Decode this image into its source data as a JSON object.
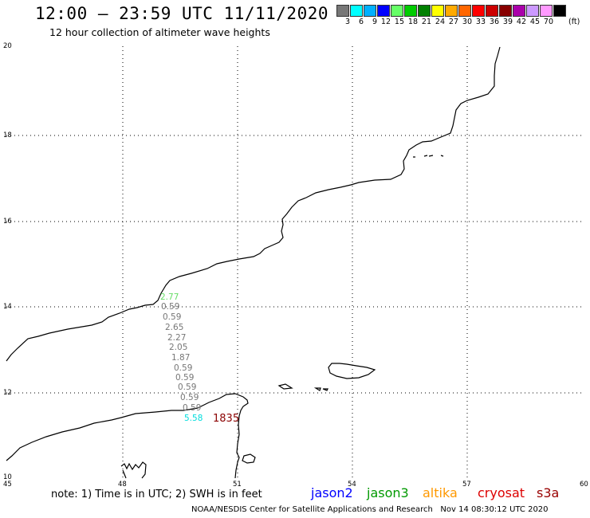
{
  "header": {
    "title": "12:00 – 23:59 UTC 11/11/2020",
    "subtitle": "12 hour collection of altimeter wave heights"
  },
  "colorbar": {
    "colors": [
      "#777777",
      "#00ffff",
      "#00b0ff",
      "#0000ff",
      "#66ff66",
      "#00cc00",
      "#008000",
      "#ffff00",
      "#ffaa00",
      "#ff6600",
      "#ff0000",
      "#cc0000",
      "#880000",
      "#aa00aa",
      "#cc99ff",
      "#ff99ff",
      "#000000"
    ],
    "labels": [
      "3",
      "6",
      "9",
      "12",
      "15",
      "18",
      "21",
      "24",
      "27",
      "30",
      "33",
      "36",
      "39",
      "42",
      "45",
      "70"
    ],
    "unit": "(ft)"
  },
  "axes": {
    "y_labels": [
      "20",
      "18",
      "16",
      "14",
      "12",
      "10"
    ],
    "x_labels": [
      "45",
      "48",
      "51",
      "54",
      "57",
      "60"
    ]
  },
  "swh_values": [
    {
      "text": "2.77",
      "color": "#66dd66"
    },
    {
      "text": "0.59",
      "color": "#777777"
    },
    {
      "text": "0.59",
      "color": "#777777"
    },
    {
      "text": "2.65",
      "color": "#777777"
    },
    {
      "text": "2.27",
      "color": "#777777"
    },
    {
      "text": "2.05",
      "color": "#777777"
    },
    {
      "text": "1.87",
      "color": "#777777"
    },
    {
      "text": "0.59",
      "color": "#777777"
    },
    {
      "text": "0.59",
      "color": "#777777"
    },
    {
      "text": "0.59",
      "color": "#777777"
    },
    {
      "text": "0.59",
      "color": "#777777"
    },
    {
      "text": "0.59",
      "color": "#777777"
    },
    {
      "text": "5.58",
      "color": "#00dddd"
    }
  ],
  "time_tag": "1835",
  "footer": {
    "note": "note: 1) Time is in UTC; 2) SWH is in feet",
    "satellites": [
      {
        "name": "jason2",
        "color": "#0000ff"
      },
      {
        "name": "jason3",
        "color": "#009900"
      },
      {
        "name": "altika",
        "color": "#ff9900"
      },
      {
        "name": "cryosat",
        "color": "#dd0000"
      },
      {
        "name": "s3a",
        "color": "#990000"
      }
    ],
    "credit": "NOAA/NESDIS Center for Satellite Applications and Research   Nov 14 08:30:12 UTC 2020"
  }
}
